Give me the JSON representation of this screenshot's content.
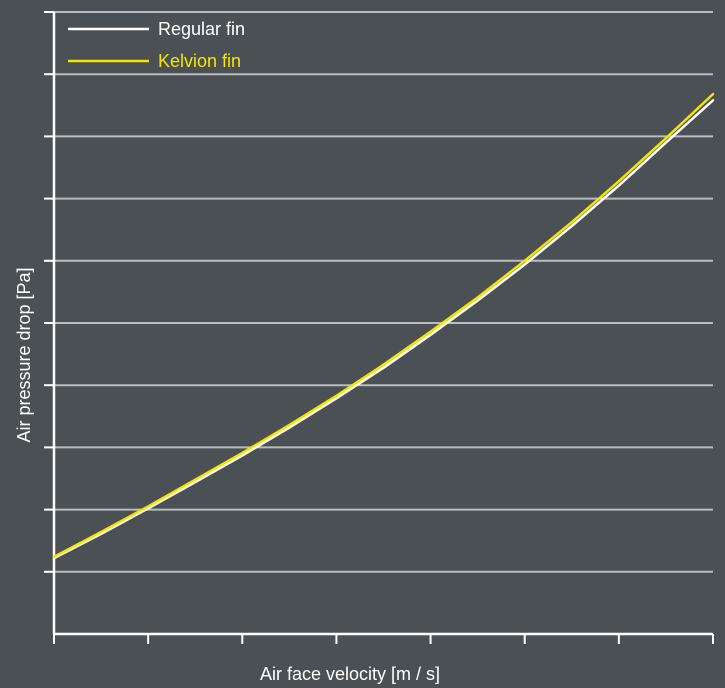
{
  "chart_data": {
    "type": "line",
    "title": "",
    "xlabel": "Air face velocity [m / s]",
    "ylabel": "Air pressure drop [Pa]",
    "x_tick_count": 8,
    "y_gridline_count": 10,
    "grid": "horizontal",
    "legend_position": "top-left",
    "xlim": [
      0,
      7
    ],
    "ylim": [
      0,
      10
    ],
    "series": [
      {
        "name": "Regular fin",
        "color": "#ffffff",
        "x": [
          0,
          0.5,
          1,
          1.5,
          2,
          2.5,
          3,
          3.5,
          4,
          4.5,
          5,
          5.5,
          6,
          6.5,
          7
        ],
        "values": [
          1.22,
          1.61,
          2.02,
          2.44,
          2.87,
          3.32,
          3.79,
          4.28,
          4.81,
          5.36,
          5.94,
          6.56,
          7.21,
          7.9,
          8.58
        ]
      },
      {
        "name": "Kelvion fin",
        "color": "#f5e600",
        "x": [
          0,
          0.5,
          1,
          1.5,
          2,
          2.5,
          3,
          3.5,
          4,
          4.5,
          5,
          5.5,
          6,
          6.5,
          7
        ],
        "values": [
          1.24,
          1.64,
          2.05,
          2.48,
          2.91,
          3.36,
          3.83,
          4.33,
          4.86,
          5.41,
          6,
          6.62,
          7.28,
          7.97,
          8.68
        ]
      }
    ]
  }
}
